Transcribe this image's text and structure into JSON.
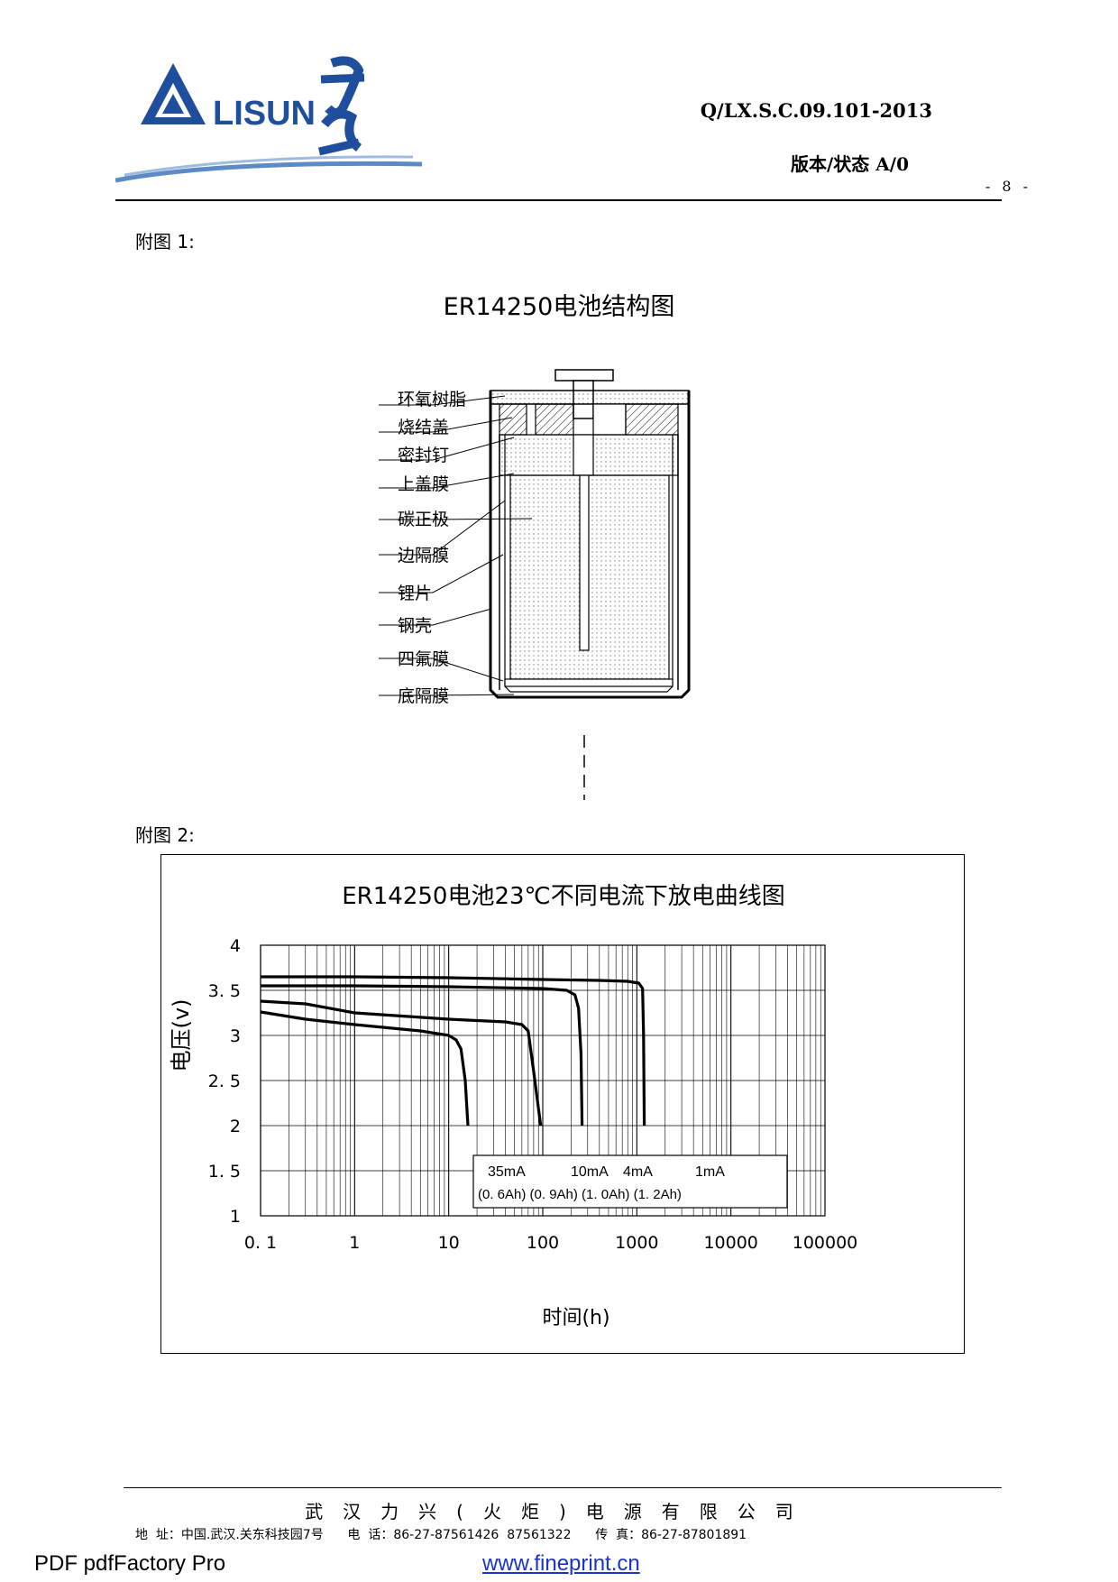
{
  "header": {
    "logo_text": "LISUN",
    "logo_chinese": "力兴",
    "doc_code": "Q/LX.S.C.09.101-2013",
    "version": "版本/状态 A/0",
    "page_number": "- 8 -"
  },
  "figure1": {
    "label": "附图 1:",
    "title": "ER14250电池结构图",
    "parts": [
      "环氧树脂",
      "烧结盖",
      "密封钉",
      "上盖膜",
      "碳正极",
      "边隔膜",
      "锂片",
      "钢壳",
      "四氟膜",
      "底隔膜"
    ]
  },
  "figure2": {
    "label": "附图 2:"
  },
  "chart_data": {
    "type": "line",
    "title": "ER14250电池23℃不同电流下放电曲线图",
    "xlabel": "时间(h)",
    "ylabel": "电压(v)",
    "x_scale": "log",
    "xlim": [
      0.1,
      100000
    ],
    "ylim": [
      1,
      4
    ],
    "x_tick_labels": [
      "0. 1",
      "1",
      "10",
      "100",
      "1000",
      "10000",
      "100000"
    ],
    "y_tick_labels": [
      "4",
      "3. 5",
      "3",
      "2. 5",
      "2",
      "1. 5",
      "1"
    ],
    "grid": true,
    "series": [
      {
        "name": "1mA (1.2Ah)",
        "x": [
          0.1,
          1,
          10,
          100,
          400,
          800,
          1050,
          1150,
          1180,
          1200
        ],
        "y": [
          3.65,
          3.65,
          3.64,
          3.62,
          3.61,
          3.6,
          3.58,
          3.52,
          3.0,
          2.0
        ]
      },
      {
        "name": "4mA (1.0Ah)",
        "x": [
          0.1,
          1,
          10,
          100,
          180,
          220,
          240,
          255,
          262
        ],
        "y": [
          3.55,
          3.55,
          3.54,
          3.52,
          3.5,
          3.45,
          3.3,
          2.8,
          2.0
        ]
      },
      {
        "name": "10mA (0.9Ah)",
        "x": [
          0.1,
          0.3,
          1,
          10,
          40,
          60,
          70,
          80,
          95
        ],
        "y": [
          3.38,
          3.35,
          3.25,
          3.18,
          3.15,
          3.12,
          3.05,
          2.6,
          2.0
        ]
      },
      {
        "name": "35mA (0.6Ah)",
        "x": [
          0.1,
          0.3,
          1,
          5,
          10,
          12,
          13.5,
          15,
          16
        ],
        "y": [
          3.26,
          3.18,
          3.12,
          3.05,
          3.0,
          2.95,
          2.85,
          2.5,
          2.0
        ]
      }
    ],
    "legend": {
      "currents": [
        "35mA",
        "10mA",
        "4mA",
        "1mA"
      ],
      "capacities": "(0. 6Ah) (0. 9Ah) (1. 0Ah) (1. 2Ah)"
    }
  },
  "footer": {
    "company": "武汉力兴(火炬)电源有限公司",
    "address_label": "地  址：",
    "address": "中国.武汉.关东科技园7号",
    "phone_label": "电  话：",
    "phone": "86-27-87561426  87561322",
    "fax_label": "传  真：",
    "fax": "86-27-87801891",
    "pdf_producer": "PDF  pdfFactory Pro",
    "website": "www.fineprint.cn"
  }
}
